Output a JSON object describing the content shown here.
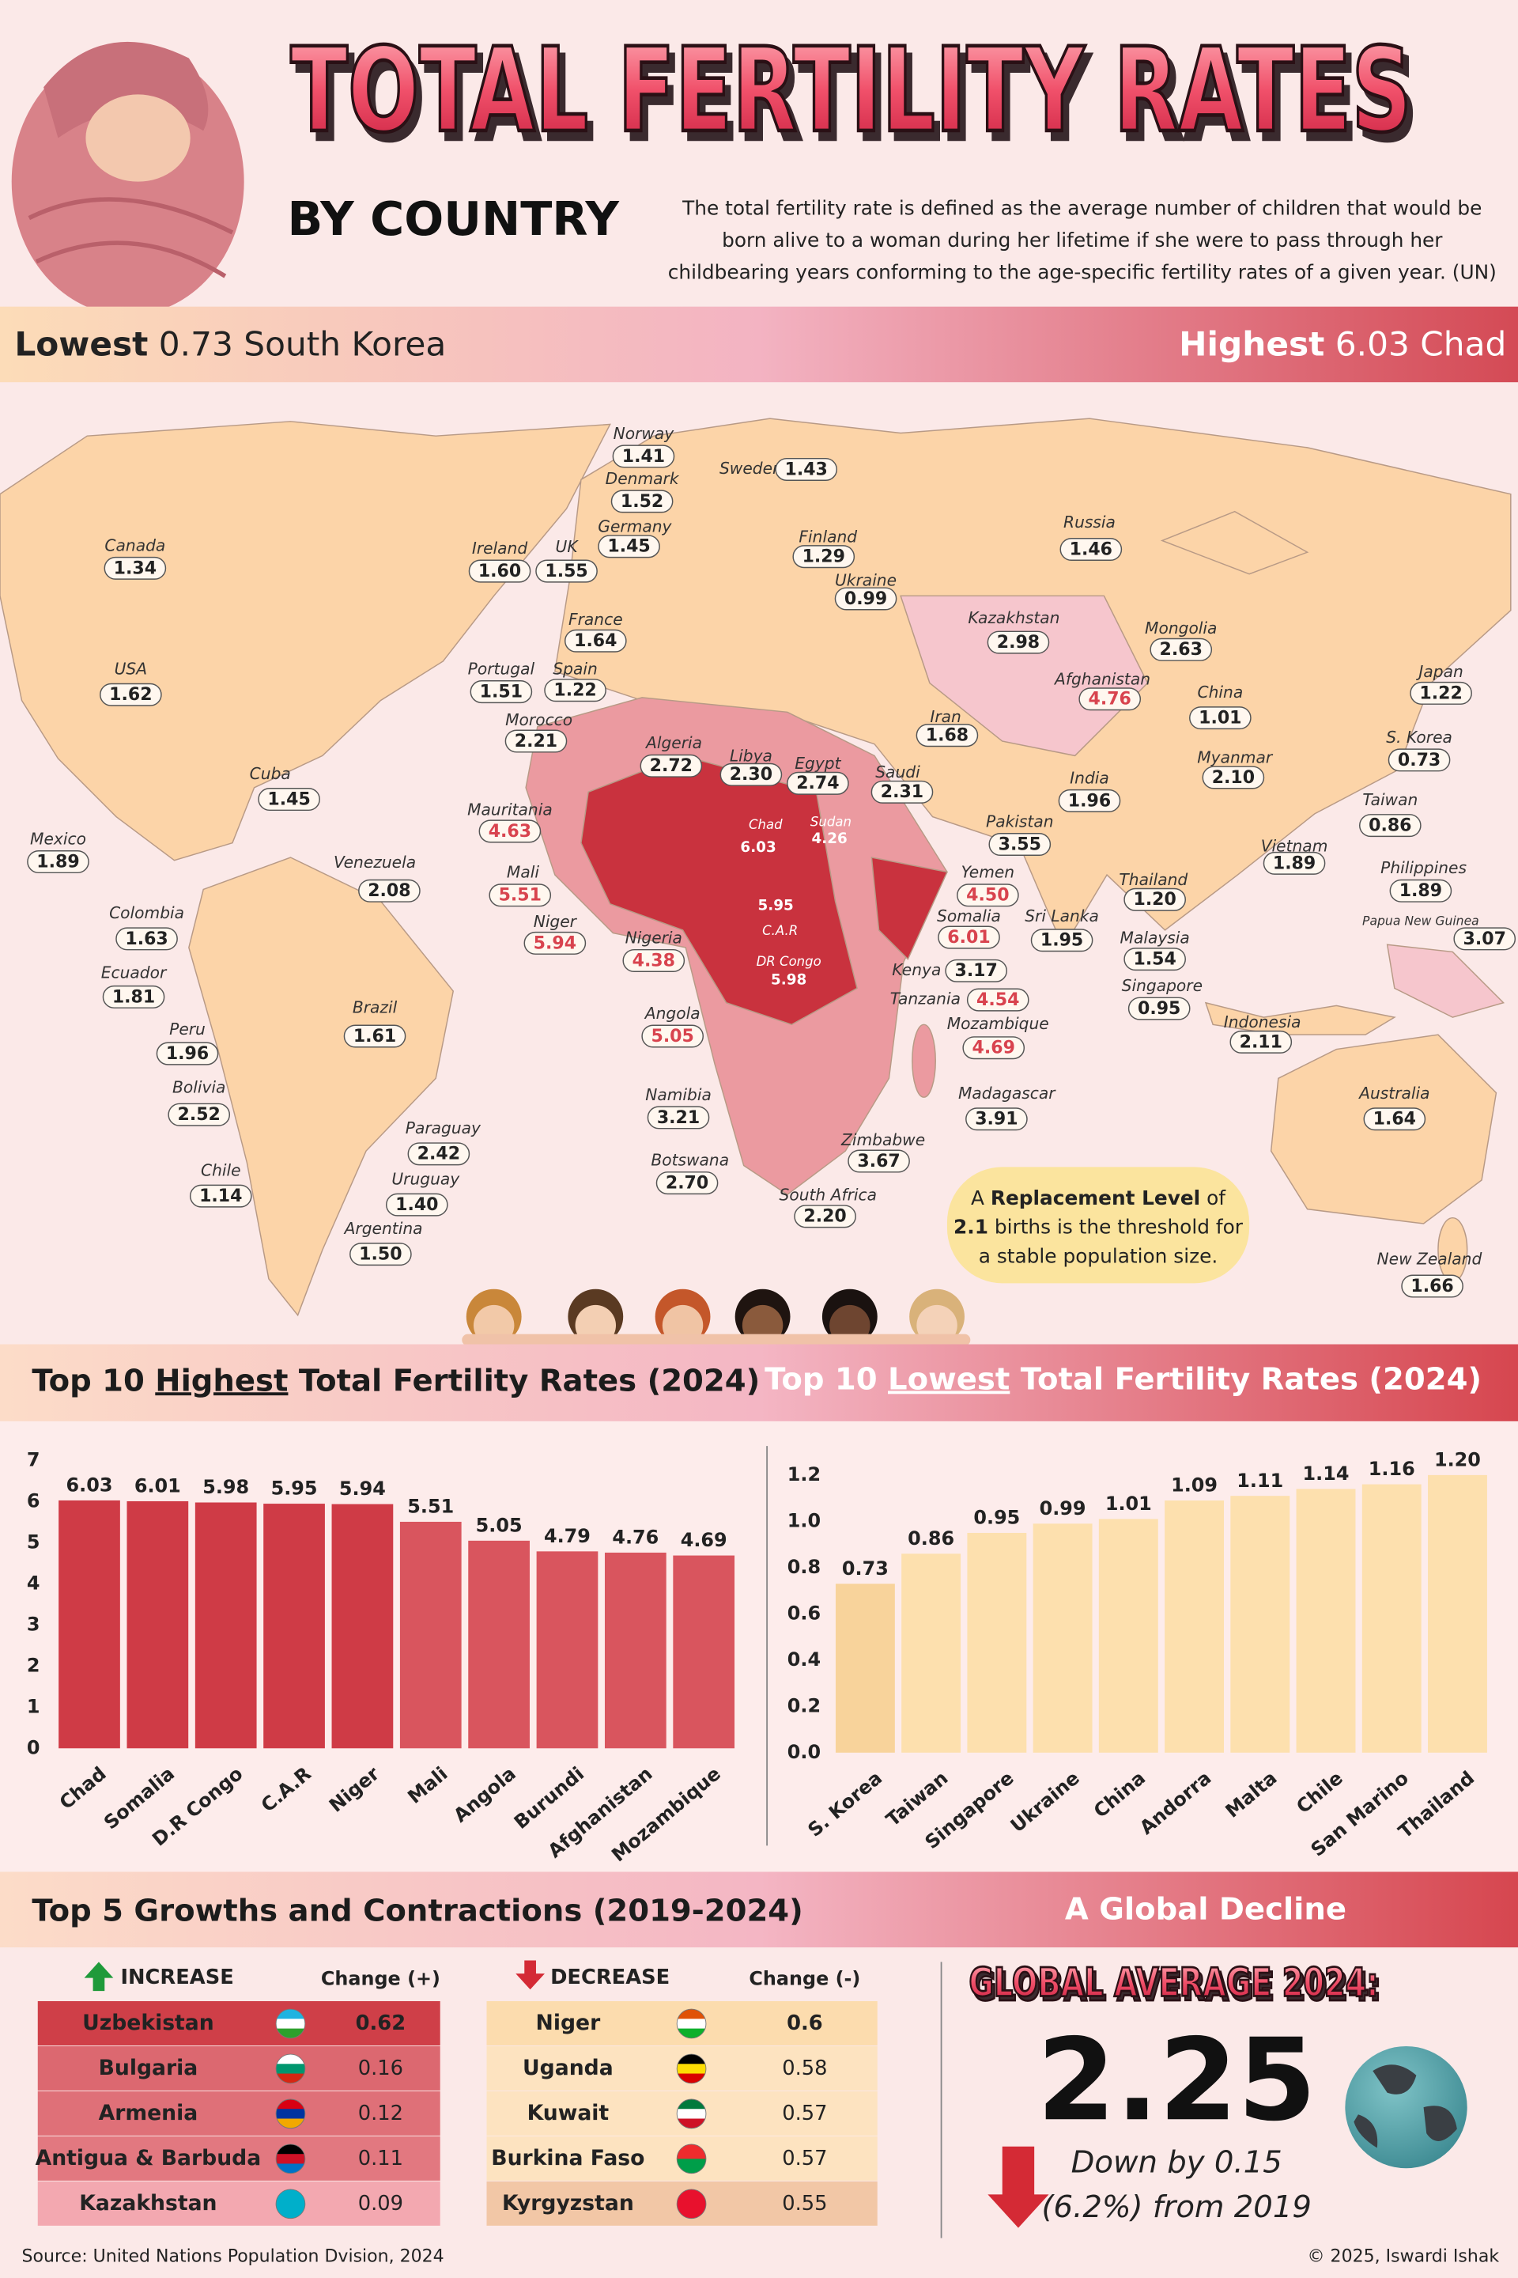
{
  "header": {
    "title": "TOTAL FERTILITY RATES",
    "subtitle": "BY COUNTRY",
    "description": [
      "The total fertility rate is defined as the average number of children that would be",
      "born alive to a woman during her lifetime if she were to pass through her",
      "childbearing years conforming to the age-specific fertility rates of a given year. (UN)"
    ]
  },
  "banner": {
    "lowest": {
      "label": "Lowest",
      "value": 0.73,
      "country": "South Korea"
    },
    "highest": {
      "label": "Highest",
      "value": 6.03,
      "country": "Chad"
    }
  },
  "map": {
    "countries": [
      {
        "name": "Norway",
        "value": 1.41
      },
      {
        "name": "Denmark",
        "value": 1.52
      },
      {
        "name": "Germany",
        "value": 1.45
      },
      {
        "name": "Sweden",
        "value": 1.43
      },
      {
        "name": "Finland",
        "value": 1.29
      },
      {
        "name": "Ukraine",
        "value": 0.99
      },
      {
        "name": "Russia",
        "value": 1.46
      },
      {
        "name": "Canada",
        "value": 1.34
      },
      {
        "name": "Ireland",
        "value": 1.6,
        "label": "1.60"
      },
      {
        "name": "UK",
        "value": 1.55
      },
      {
        "name": "France",
        "value": 1.64
      },
      {
        "name": "Kazakhstan",
        "value": 2.98
      },
      {
        "name": "Mongolia",
        "value": 2.63
      },
      {
        "name": "USA",
        "value": 1.62
      },
      {
        "name": "Portugal",
        "value": 1.51
      },
      {
        "name": "Spain",
        "value": 1.22
      },
      {
        "name": "Afghanistan",
        "value": 4.76
      },
      {
        "name": "Japan",
        "value": 1.22
      },
      {
        "name": "China",
        "value": 1.01
      },
      {
        "name": "Iran",
        "value": 1.68
      },
      {
        "name": "Morocco",
        "value": 2.21
      },
      {
        "name": "Algeria",
        "value": 2.72
      },
      {
        "name": "Libya",
        "value": 2.3,
        "label": "2.30"
      },
      {
        "name": "Egypt",
        "value": 2.74
      },
      {
        "name": "Saudi",
        "value": 2.31
      },
      {
        "name": "S. Korea",
        "value": 0.73
      },
      {
        "name": "Myanmar",
        "value": 2.1,
        "label": "2.10"
      },
      {
        "name": "India",
        "value": 1.96
      },
      {
        "name": "Cuba",
        "value": 1.45
      },
      {
        "name": "Mauritania",
        "value": 4.63
      },
      {
        "name": "Chad",
        "value": 6.03
      },
      {
        "name": "Sudan",
        "value": 4.26
      },
      {
        "name": "Taiwan",
        "value": 0.86
      },
      {
        "name": "Mexico",
        "value": 1.89
      },
      {
        "name": "Venezuela",
        "value": 2.08
      },
      {
        "name": "Pakistan",
        "value": 3.55
      },
      {
        "name": "Vietnam",
        "value": 1.89
      },
      {
        "name": "Mali",
        "value": 5.51
      },
      {
        "name": "Yemen",
        "value": 4.5,
        "label": "4.50"
      },
      {
        "name": "Thailand",
        "value": 1.2,
        "label": "1.20"
      },
      {
        "name": "Philippines",
        "value": 1.89
      },
      {
        "name": "Colombia",
        "value": 1.63
      },
      {
        "name": "Somalia",
        "value": 6.01
      },
      {
        "name": "Sri Lanka",
        "value": 1.95
      },
      {
        "name": "C.A.R",
        "value": 5.95
      },
      {
        "name": "Papua New Guinea",
        "value": 3.07
      },
      {
        "name": "Niger",
        "value": 5.94
      },
      {
        "name": "Nigeria",
        "value": 4.38
      },
      {
        "name": "DR Congo",
        "value": 5.98
      },
      {
        "name": "Malaysia",
        "value": 1.54
      },
      {
        "name": "Ecuador",
        "value": 1.81
      },
      {
        "name": "Kenya",
        "value": 3.17
      },
      {
        "name": "Tanzania",
        "value": 4.54
      },
      {
        "name": "Singapore",
        "value": 0.95
      },
      {
        "name": "Angola",
        "value": 5.05
      },
      {
        "name": "Brazil",
        "value": 1.61
      },
      {
        "name": "Peru",
        "value": 1.96
      },
      {
        "name": "Mozambique",
        "value": 4.69
      },
      {
        "name": "Indonesia",
        "value": 2.11
      },
      {
        "name": "Bolivia",
        "value": 2.52
      },
      {
        "name": "Namibia",
        "value": 3.21
      },
      {
        "name": "Madagascar",
        "value": 3.91
      },
      {
        "name": "Australia",
        "value": 1.64
      },
      {
        "name": "Paraguay",
        "value": 2.42
      },
      {
        "name": "Zimbabwe",
        "value": 3.67
      },
      {
        "name": "Botswana",
        "value": 2.7,
        "label": "2.70"
      },
      {
        "name": "Chile",
        "value": 1.14
      },
      {
        "name": "Uruguay",
        "value": 1.4,
        "label": "1.40"
      },
      {
        "name": "South Africa",
        "value": 2.2,
        "label": "2.20"
      },
      {
        "name": "Argentina",
        "value": 1.5,
        "label": "1.50"
      },
      {
        "name": "New Zealand",
        "value": 1.66
      }
    ],
    "note": {
      "line1": [
        "A",
        "Replacement Level",
        "of"
      ],
      "line2": [
        2.1,
        "births is the threshold for"
      ],
      "line3": "a stable population size."
    }
  },
  "chart_data": [
    {
      "type": "bar",
      "title_prefix": "Top 10",
      "title_emphasis": "Highest",
      "title_suffix": "Total Fertility Rates (2024)",
      "categories": [
        "Chad",
        "Somalia",
        "D.R Congo",
        "C.A.R",
        "Niger",
        "Mali",
        "Angola",
        "Burundi",
        "Afghanistan",
        "Mozambique"
      ],
      "values": [
        6.03,
        6.01,
        5.98,
        5.95,
        5.94,
        5.51,
        5.05,
        4.79,
        4.76,
        4.69
      ],
      "colors": [
        "#cf3b46",
        "#cf3b46",
        "#cf3b46",
        "#cf3b46",
        "#cf3b46",
        "#d9555e",
        "#d9555e",
        "#d9555e",
        "#d9555e",
        "#d9555e"
      ],
      "ylim": [
        0,
        7
      ],
      "yticks": [
        0,
        1,
        2,
        3,
        4,
        5,
        6,
        7
      ]
    },
    {
      "type": "bar",
      "title_prefix": "Top 10",
      "title_emphasis": "Lowest",
      "title_suffix": "Total Fertility Rates (2024)",
      "categories": [
        "S. Korea",
        "Taiwan",
        "Singapore",
        "Ukraine",
        "China",
        "Andorra",
        "Malta",
        "Chile",
        "San Marino",
        "Thailand"
      ],
      "values": [
        0.73,
        0.86,
        0.95,
        0.99,
        1.01,
        1.09,
        1.11,
        1.14,
        1.16,
        1.2
      ],
      "value_labels": [
        "0.73",
        "0.86",
        "0.95",
        "0.99",
        "1.01",
        "1.09",
        "1.11",
        "1.14",
        "1.16",
        "1.20"
      ],
      "colors": [
        "#f8d39b",
        "#fde0ae",
        "#fde0ae",
        "#fde0ae",
        "#fde0ae",
        "#fde0ae",
        "#fde0ae",
        "#fde0ae",
        "#fde0ae",
        "#fde0ae"
      ],
      "ylim": [
        0,
        1.2
      ],
      "yticks": [
        {
          "value": 0,
          "label": "0.0"
        },
        0.2,
        0.4,
        0.6,
        0.8,
        {
          "value": 1,
          "label": "1.0"
        },
        1.2
      ]
    }
  ],
  "changes": {
    "title": "Top 5 Growths and Contractions (2019-2024)",
    "increase": {
      "heading": "INCREASE",
      "column": "Change (+)",
      "rows": [
        {
          "country": "Uzbekistan",
          "change": 0.62
        },
        {
          "country": "Bulgaria",
          "change": 0.16
        },
        {
          "country": "Armenia",
          "change": 0.12
        },
        {
          "country": "Antigua & Barbuda",
          "change": 0.11
        },
        {
          "country": "Kazakhstan",
          "change": 0.09
        }
      ]
    },
    "decrease": {
      "heading": "DECREASE",
      "column": "Change (-)",
      "rows": [
        {
          "country": "Niger",
          "change": 0.6
        },
        {
          "country": "Uganda",
          "change": 0.58
        },
        {
          "country": "Kuwait",
          "change": 0.57
        },
        {
          "country": "Burkina Faso",
          "change": 0.57
        },
        {
          "country": "Kyrgyzstan",
          "change": 0.55
        }
      ]
    }
  },
  "global": {
    "heading": "A Global Decline",
    "label": "GLOBAL AVERAGE 2024:",
    "value": 2.25,
    "change_line1": "Down by 0.15",
    "change_line2": "(6.2%) from 2019"
  },
  "footer": {
    "source": "Source: United Nations Population Dvision, 2024",
    "credit": "© 2025, Iswardi Ishak"
  }
}
